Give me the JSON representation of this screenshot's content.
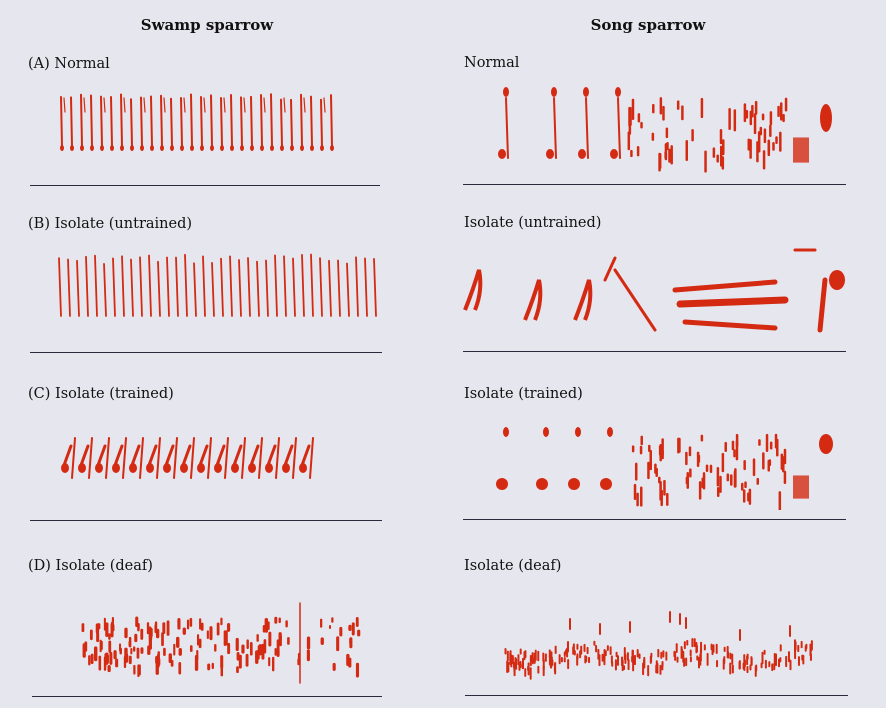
{
  "columns": {
    "left": "Swamp sparrow",
    "right": "Song sparrow"
  },
  "rows": [
    {
      "left_label": "(A)  Normal",
      "right_label": "Normal"
    },
    {
      "left_label": "(B)  Isolate (untrained)",
      "right_label": "Isolate (untrained)"
    },
    {
      "left_label": "(C)  Isolate (trained)",
      "right_label": "Isolate (trained)"
    },
    {
      "left_label": "(D)  Isolate (deaf)",
      "right_label": "Isolate (deaf)"
    }
  ],
  "colors": {
    "ink": "#d42a12",
    "background": "#e6e6ee",
    "baseline": "#2a2a3a"
  }
}
